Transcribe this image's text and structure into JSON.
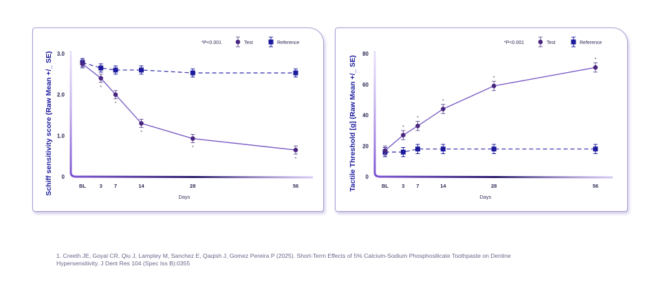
{
  "chart_data": [
    {
      "type": "line",
      "ylabel": "Schiff sensitivity score (Raw Mean +/_ SE)",
      "xlabel": "Days",
      "x_tick_labels": [
        "BL",
        "3",
        "7",
        "14",
        "28",
        "56"
      ],
      "x": [
        0,
        3,
        7,
        14,
        28,
        56
      ],
      "y_ticks": [
        "0",
        "1.0",
        "2.0",
        "3.0"
      ],
      "ylim": [
        0,
        3.0
      ],
      "annotation": "*P<0.001",
      "series": [
        {
          "name": "Test",
          "values": [
            2.75,
            2.4,
            2.0,
            1.3,
            0.93,
            0.65
          ],
          "se": [
            0.1,
            0.1,
            0.1,
            0.1,
            0.1,
            0.1
          ],
          "significant": [
            false,
            true,
            true,
            true,
            true,
            true
          ],
          "color": "#4a2580",
          "line_color": "#7a5cc4",
          "style": "solid",
          "marker": "circle"
        },
        {
          "name": "Reference",
          "values": [
            2.78,
            2.65,
            2.6,
            2.6,
            2.53,
            2.53
          ],
          "se": [
            0.1,
            0.1,
            0.1,
            0.1,
            0.1,
            0.1
          ],
          "color": "#1c1a9c",
          "line_color": "#3d3ab0",
          "style": "dashed",
          "marker": "square"
        }
      ]
    },
    {
      "type": "line",
      "ylabel": "Tactile Threshold [g] (Raw Mean +/_ SE)",
      "xlabel": "Days",
      "x_tick_labels": [
        "BL",
        "3",
        "7",
        "14",
        "28",
        "56"
      ],
      "x": [
        0,
        3,
        7,
        14,
        28,
        56
      ],
      "y_ticks": [
        "0",
        "20",
        "40",
        "60",
        "80"
      ],
      "ylim": [
        0,
        80
      ],
      "annotation": "*P<0.001",
      "series": [
        {
          "name": "Test",
          "values": [
            17,
            27,
            33,
            44,
            59,
            71
          ],
          "se": [
            3,
            3,
            3,
            3,
            3,
            3
          ],
          "significant": [
            false,
            true,
            true,
            true,
            true,
            true
          ],
          "color": "#4a2580",
          "line_color": "#7a5cc4",
          "style": "solid",
          "marker": "circle"
        },
        {
          "name": "Reference",
          "values": [
            16,
            16,
            18,
            18,
            18,
            18
          ],
          "se": [
            3,
            3,
            3,
            3,
            3,
            3
          ],
          "color": "#1c1a9c",
          "line_color": "#3d3ab0",
          "style": "dashed",
          "marker": "square"
        }
      ]
    }
  ],
  "footnote": {
    "line1": "1. Creeth JE, Goyal CR, Qiu J, Lamptey M, Sanchez E, Qaqish J, Gomez Pereira P (2025). Short-Term Effects of 5% Calcium-Sodium Phosphosilicate Toothpaste on Dentine",
    "line2": "Hypersensitivity. J Dent Res 104 (Spec Iss B):0355"
  }
}
